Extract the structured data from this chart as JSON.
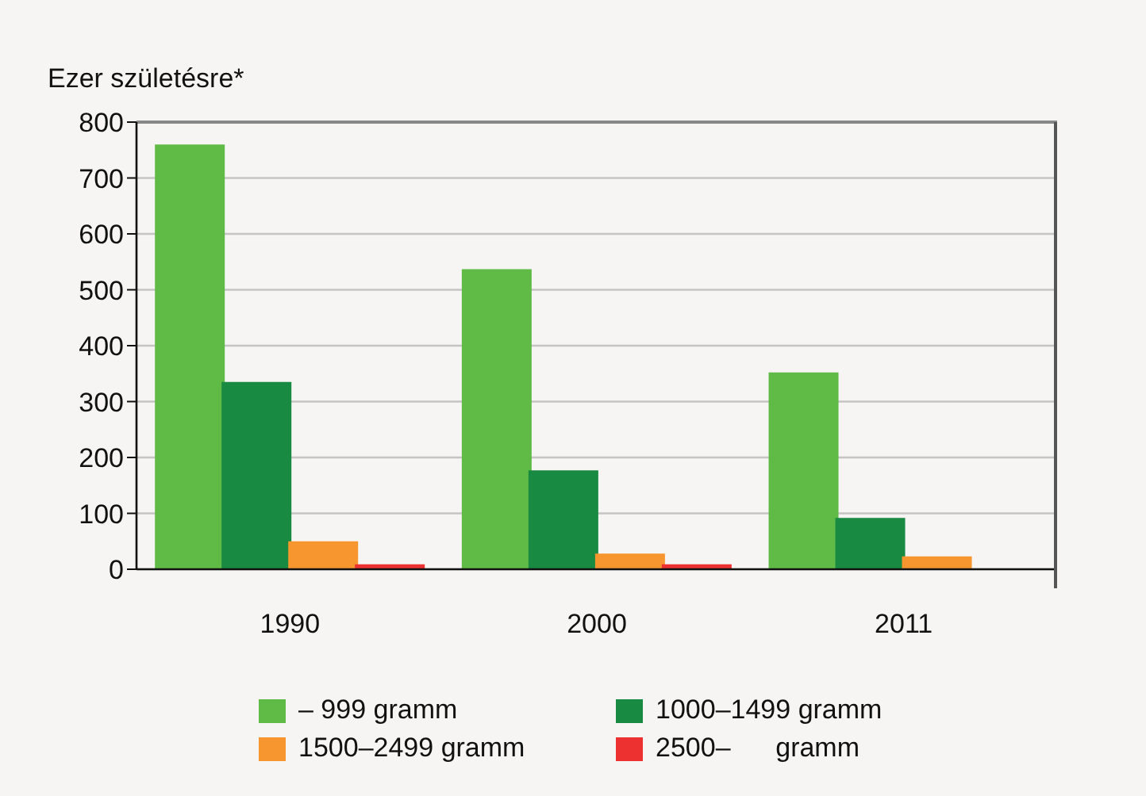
{
  "chart_data": {
    "type": "bar",
    "ylabel": "Ezer születésre*",
    "categories": [
      "1990",
      "2000",
      "2011"
    ],
    "series": [
      {
        "name": "– 999 gramm",
        "color": "#5fbb46",
        "values": [
          760,
          537,
          352
        ]
      },
      {
        "name": "1000–1499 gramm",
        "color": "#188a42",
        "values": [
          335,
          177,
          92
        ]
      },
      {
        "name": "1500–2499 gramm",
        "color": "#f7962f",
        "values": [
          50,
          28,
          23
        ]
      },
      {
        "name": "2500–      gramm",
        "color": "#ed3030",
        "values": [
          9,
          9,
          null
        ]
      }
    ],
    "ylim": [
      0,
      800
    ],
    "yticks": [
      0,
      100,
      200,
      300,
      400,
      500,
      600,
      700,
      800
    ],
    "grid": "y",
    "legend": "bottom"
  }
}
